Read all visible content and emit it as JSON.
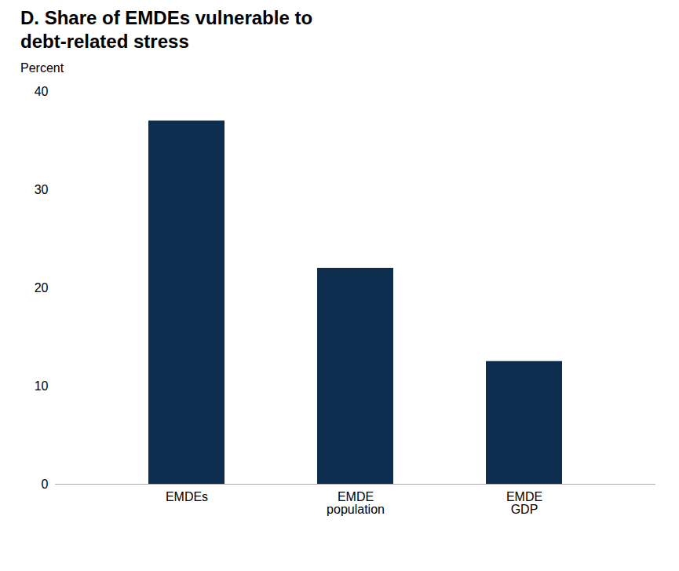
{
  "chart_data": {
    "type": "bar",
    "title": "D. Share of EMDEs vulnerable to\ndebt-related stress",
    "ylabel": "Percent",
    "categories": [
      "EMDEs",
      "EMDE\npopulation",
      "EMDE\nGDP"
    ],
    "values": [
      37.0,
      22.0,
      12.5
    ],
    "color": "#0d2d4e",
    "ylim": [
      0,
      40
    ],
    "yticks": [
      0,
      10,
      20,
      30,
      40
    ],
    "grid": false
  }
}
